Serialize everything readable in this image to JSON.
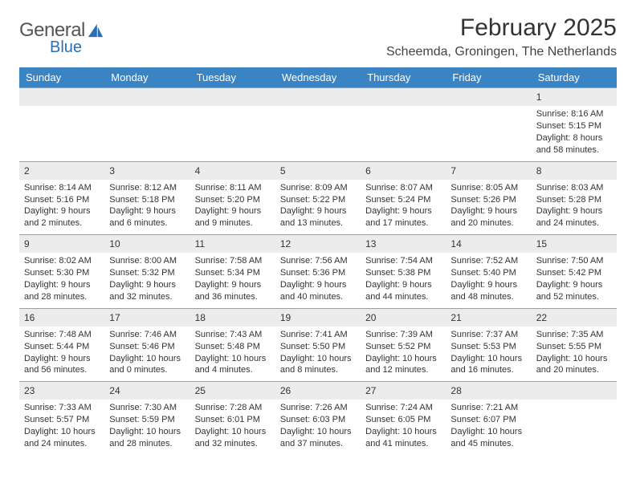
{
  "brand": {
    "word1": "General",
    "word2": "Blue",
    "word1_color": "#595959",
    "word2_color": "#2a6fb5",
    "sail_color": "#2a6fb5"
  },
  "title": "February 2025",
  "subtitle": "Scheemda, Groningen, The Netherlands",
  "colors": {
    "header_bg": "#3b84c4",
    "header_text": "#ffffff",
    "daynum_bg": "#ececec",
    "rule": "#9aa0a6",
    "body_text": "#333333"
  },
  "fonts": {
    "title_size": 30,
    "subtitle_size": 16,
    "dayhead_size": 13,
    "cell_size": 11
  },
  "day_names": [
    "Sunday",
    "Monday",
    "Tuesday",
    "Wednesday",
    "Thursday",
    "Friday",
    "Saturday"
  ],
  "weeks": [
    [
      {
        "n": "",
        "sr": "",
        "ss": "",
        "dl": ""
      },
      {
        "n": "",
        "sr": "",
        "ss": "",
        "dl": ""
      },
      {
        "n": "",
        "sr": "",
        "ss": "",
        "dl": ""
      },
      {
        "n": "",
        "sr": "",
        "ss": "",
        "dl": ""
      },
      {
        "n": "",
        "sr": "",
        "ss": "",
        "dl": ""
      },
      {
        "n": "",
        "sr": "",
        "ss": "",
        "dl": ""
      },
      {
        "n": "1",
        "sr": "Sunrise: 8:16 AM",
        "ss": "Sunset: 5:15 PM",
        "dl": "Daylight: 8 hours and 58 minutes."
      }
    ],
    [
      {
        "n": "2",
        "sr": "Sunrise: 8:14 AM",
        "ss": "Sunset: 5:16 PM",
        "dl": "Daylight: 9 hours and 2 minutes."
      },
      {
        "n": "3",
        "sr": "Sunrise: 8:12 AM",
        "ss": "Sunset: 5:18 PM",
        "dl": "Daylight: 9 hours and 6 minutes."
      },
      {
        "n": "4",
        "sr": "Sunrise: 8:11 AM",
        "ss": "Sunset: 5:20 PM",
        "dl": "Daylight: 9 hours and 9 minutes."
      },
      {
        "n": "5",
        "sr": "Sunrise: 8:09 AM",
        "ss": "Sunset: 5:22 PM",
        "dl": "Daylight: 9 hours and 13 minutes."
      },
      {
        "n": "6",
        "sr": "Sunrise: 8:07 AM",
        "ss": "Sunset: 5:24 PM",
        "dl": "Daylight: 9 hours and 17 minutes."
      },
      {
        "n": "7",
        "sr": "Sunrise: 8:05 AM",
        "ss": "Sunset: 5:26 PM",
        "dl": "Daylight: 9 hours and 20 minutes."
      },
      {
        "n": "8",
        "sr": "Sunrise: 8:03 AM",
        "ss": "Sunset: 5:28 PM",
        "dl": "Daylight: 9 hours and 24 minutes."
      }
    ],
    [
      {
        "n": "9",
        "sr": "Sunrise: 8:02 AM",
        "ss": "Sunset: 5:30 PM",
        "dl": "Daylight: 9 hours and 28 minutes."
      },
      {
        "n": "10",
        "sr": "Sunrise: 8:00 AM",
        "ss": "Sunset: 5:32 PM",
        "dl": "Daylight: 9 hours and 32 minutes."
      },
      {
        "n": "11",
        "sr": "Sunrise: 7:58 AM",
        "ss": "Sunset: 5:34 PM",
        "dl": "Daylight: 9 hours and 36 minutes."
      },
      {
        "n": "12",
        "sr": "Sunrise: 7:56 AM",
        "ss": "Sunset: 5:36 PM",
        "dl": "Daylight: 9 hours and 40 minutes."
      },
      {
        "n": "13",
        "sr": "Sunrise: 7:54 AM",
        "ss": "Sunset: 5:38 PM",
        "dl": "Daylight: 9 hours and 44 minutes."
      },
      {
        "n": "14",
        "sr": "Sunrise: 7:52 AM",
        "ss": "Sunset: 5:40 PM",
        "dl": "Daylight: 9 hours and 48 minutes."
      },
      {
        "n": "15",
        "sr": "Sunrise: 7:50 AM",
        "ss": "Sunset: 5:42 PM",
        "dl": "Daylight: 9 hours and 52 minutes."
      }
    ],
    [
      {
        "n": "16",
        "sr": "Sunrise: 7:48 AM",
        "ss": "Sunset: 5:44 PM",
        "dl": "Daylight: 9 hours and 56 minutes."
      },
      {
        "n": "17",
        "sr": "Sunrise: 7:46 AM",
        "ss": "Sunset: 5:46 PM",
        "dl": "Daylight: 10 hours and 0 minutes."
      },
      {
        "n": "18",
        "sr": "Sunrise: 7:43 AM",
        "ss": "Sunset: 5:48 PM",
        "dl": "Daylight: 10 hours and 4 minutes."
      },
      {
        "n": "19",
        "sr": "Sunrise: 7:41 AM",
        "ss": "Sunset: 5:50 PM",
        "dl": "Daylight: 10 hours and 8 minutes."
      },
      {
        "n": "20",
        "sr": "Sunrise: 7:39 AM",
        "ss": "Sunset: 5:52 PM",
        "dl": "Daylight: 10 hours and 12 minutes."
      },
      {
        "n": "21",
        "sr": "Sunrise: 7:37 AM",
        "ss": "Sunset: 5:53 PM",
        "dl": "Daylight: 10 hours and 16 minutes."
      },
      {
        "n": "22",
        "sr": "Sunrise: 7:35 AM",
        "ss": "Sunset: 5:55 PM",
        "dl": "Daylight: 10 hours and 20 minutes."
      }
    ],
    [
      {
        "n": "23",
        "sr": "Sunrise: 7:33 AM",
        "ss": "Sunset: 5:57 PM",
        "dl": "Daylight: 10 hours and 24 minutes."
      },
      {
        "n": "24",
        "sr": "Sunrise: 7:30 AM",
        "ss": "Sunset: 5:59 PM",
        "dl": "Daylight: 10 hours and 28 minutes."
      },
      {
        "n": "25",
        "sr": "Sunrise: 7:28 AM",
        "ss": "Sunset: 6:01 PM",
        "dl": "Daylight: 10 hours and 32 minutes."
      },
      {
        "n": "26",
        "sr": "Sunrise: 7:26 AM",
        "ss": "Sunset: 6:03 PM",
        "dl": "Daylight: 10 hours and 37 minutes."
      },
      {
        "n": "27",
        "sr": "Sunrise: 7:24 AM",
        "ss": "Sunset: 6:05 PM",
        "dl": "Daylight: 10 hours and 41 minutes."
      },
      {
        "n": "28",
        "sr": "Sunrise: 7:21 AM",
        "ss": "Sunset: 6:07 PM",
        "dl": "Daylight: 10 hours and 45 minutes."
      },
      {
        "n": "",
        "sr": "",
        "ss": "",
        "dl": ""
      }
    ]
  ]
}
